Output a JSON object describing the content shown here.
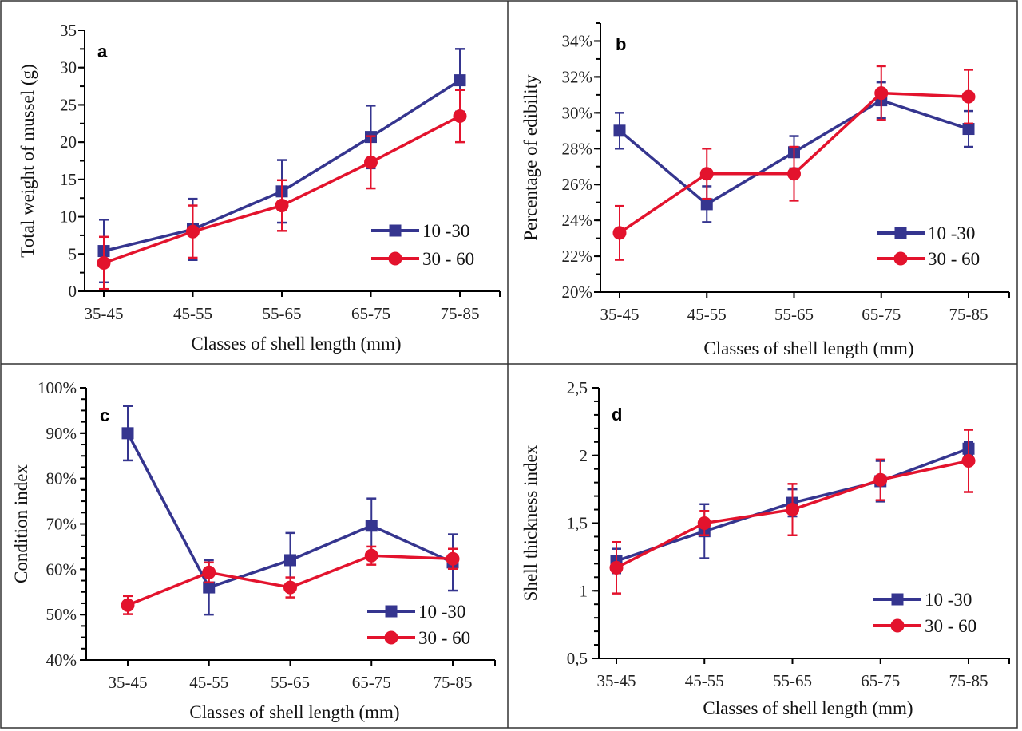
{
  "colors": {
    "series_a": "#35358f",
    "series_b": "#e3132d"
  },
  "chart_data": [
    {
      "type": "line",
      "panel_label": "a",
      "title": "",
      "xlabel": "Classes of shell length (mm)",
      "ylabel": "Total weight of mussel (g)",
      "categories": [
        "35-45",
        "45-55",
        "55-65",
        "65-75",
        "75-85"
      ],
      "ylim": [
        0,
        35
      ],
      "yticks": [
        0,
        5,
        10,
        15,
        20,
        25,
        30,
        35
      ],
      "ytick_labels": [
        "0",
        "5",
        "10",
        "15",
        "20",
        "25",
        "30",
        "35"
      ],
      "minor_step": 2.5,
      "legend_position": "bottom-right",
      "series": [
        {
          "name": "10 -30",
          "marker": "square",
          "values": [
            5.4,
            8.3,
            13.4,
            20.7,
            28.3
          ],
          "errors": [
            4.2,
            4.1,
            4.2,
            4.2,
            4.2
          ]
        },
        {
          "name": "30 - 60",
          "marker": "circle",
          "values": [
            3.8,
            8.0,
            11.5,
            17.3,
            23.5
          ],
          "errors": [
            3.5,
            3.5,
            3.4,
            3.5,
            3.5
          ]
        }
      ]
    },
    {
      "type": "line",
      "panel_label": "b",
      "title": "",
      "xlabel": "Classes of shell length (mm)",
      "ylabel": "Percentage of edibility",
      "categories": [
        "35-45",
        "45-55",
        "55-65",
        "65-75",
        "75-85"
      ],
      "ylim": [
        20,
        35
      ],
      "yticks": [
        20,
        22,
        24,
        26,
        28,
        30,
        32,
        34
      ],
      "ytick_labels": [
        "20%",
        "22%",
        "24%",
        "26%",
        "28%",
        "30%",
        "32%",
        "34%"
      ],
      "minor_step": 1,
      "legend_position": "bottom-right",
      "series": [
        {
          "name": "10 -30",
          "marker": "square",
          "values": [
            29.0,
            24.9,
            27.8,
            30.7,
            29.1
          ],
          "errors": [
            1.0,
            1.0,
            0.9,
            1.0,
            1.0
          ]
        },
        {
          "name": "30 - 60",
          "marker": "circle",
          "values": [
            23.3,
            26.6,
            26.6,
            31.1,
            30.9
          ],
          "errors": [
            1.5,
            1.4,
            1.5,
            1.5,
            1.5
          ]
        }
      ]
    },
    {
      "type": "line",
      "panel_label": "c",
      "title": "",
      "xlabel": "Classes of shell length (mm)",
      "ylabel": "Condition index",
      "categories": [
        "35-45",
        "45-55",
        "55-65",
        "65-75",
        "75-85"
      ],
      "ylim": [
        40,
        100
      ],
      "yticks": [
        40,
        50,
        60,
        70,
        80,
        90,
        100
      ],
      "ytick_labels": [
        "40%",
        "50%",
        "60%",
        "70%",
        "80%",
        "90%",
        "100%"
      ],
      "minor_step": 2.5,
      "legend_position": "bottom-right",
      "series": [
        {
          "name": "10 -30",
          "marker": "square",
          "values": [
            90.0,
            56.0,
            62.0,
            69.6,
            61.5
          ],
          "errors": [
            6.0,
            6.0,
            6.0,
            6.0,
            6.2
          ]
        },
        {
          "name": "30 - 60",
          "marker": "circle",
          "values": [
            52.1,
            59.3,
            56.0,
            63.0,
            62.3
          ],
          "errors": [
            2.0,
            2.2,
            2.2,
            2.0,
            2.2
          ]
        }
      ]
    },
    {
      "type": "line",
      "panel_label": "d",
      "title": "",
      "xlabel": "Classes of shell length (mm)",
      "ylabel": "Shell thickness index",
      "categories": [
        "35-45",
        "45-55",
        "55-65",
        "65-75",
        "75-85"
      ],
      "ylim": [
        0.5,
        2.5
      ],
      "yticks": [
        0.5,
        1,
        1.5,
        2,
        2.5
      ],
      "ytick_labels": [
        "0,5",
        "1",
        "1,5",
        "2",
        "2,5"
      ],
      "minor_step": 0.1,
      "legend_position": "bottom-right",
      "series": [
        {
          "name": "10 -30",
          "marker": "square",
          "values": [
            1.22,
            1.44,
            1.65,
            1.81,
            2.05
          ],
          "errors": [
            0.09,
            0.2,
            0.1,
            0.15,
            0.05
          ]
        },
        {
          "name": "30 - 60",
          "marker": "circle",
          "values": [
            1.17,
            1.5,
            1.6,
            1.82,
            1.96
          ],
          "errors": [
            0.19,
            0.09,
            0.19,
            0.15,
            0.23
          ]
        }
      ]
    }
  ]
}
